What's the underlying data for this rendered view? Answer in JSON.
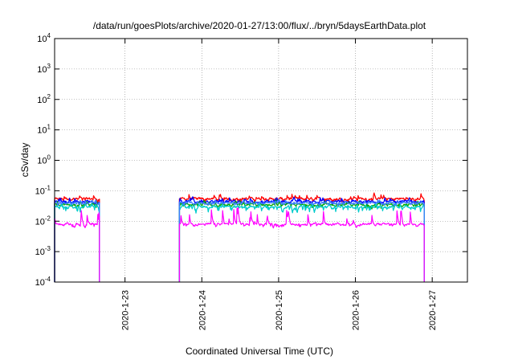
{
  "chart_data": {
    "type": "line",
    "title": "/data/run/goesPlots/archive/2020-01-27/13:00/flux/../bryn/5daysEarthData.plot",
    "xlabel": "Coordinated Universal Time (UTC)",
    "ylabel": "cSv/day",
    "yscale": "log",
    "ylim": [
      0.0001,
      10000
    ],
    "xlim": [
      "2020-01-22 02:00",
      "2020-01-27 11:00"
    ],
    "grid": true,
    "y_ticks": [
      {
        "base": "10",
        "exp": "-4",
        "value": 0.0001
      },
      {
        "base": "10",
        "exp": "-3",
        "value": 0.001
      },
      {
        "base": "10",
        "exp": "-2",
        "value": 0.01
      },
      {
        "base": "10",
        "exp": "-1",
        "value": 0.1
      },
      {
        "base": "10",
        "exp": "0",
        "value": 1
      },
      {
        "base": "10",
        "exp": "1",
        "value": 10
      },
      {
        "base": "10",
        "exp": "2",
        "value": 100
      },
      {
        "base": "10",
        "exp": "3",
        "value": 1000
      },
      {
        "base": "10",
        "exp": "4",
        "value": 10000
      }
    ],
    "x_ticks": [
      {
        "label": "2020-1-23",
        "value": "2020-01-23 00:00"
      },
      {
        "label": "2020-1-24",
        "value": "2020-01-24 00:00"
      },
      {
        "label": "2020-1-25",
        "value": "2020-01-25 00:00"
      },
      {
        "label": "2020-1-26",
        "value": "2020-01-26 00:00"
      },
      {
        "label": "2020-1-27",
        "value": "2020-01-27 00:00"
      }
    ],
    "data_segments": [
      {
        "start": "2020-01-22 02:00",
        "end": "2020-01-22 16:00"
      },
      {
        "start": "2020-01-23 17:00",
        "end": "2020-01-26 21:30"
      }
    ],
    "series": [
      {
        "color": "#ff0000",
        "baseline": 0.055,
        "spike_max": 0.1,
        "dip_min": 0.035
      },
      {
        "color": "#0000ff",
        "baseline": 0.045,
        "spike_max": 0.075,
        "dip_min": 0.03
      },
      {
        "color": "#00aa00",
        "baseline": 0.035,
        "spike_max": 0.06,
        "dip_min": 0.02
      },
      {
        "color": "#00cccc",
        "baseline": 0.03,
        "spike_max": 0.05,
        "dip_min": 0.012
      },
      {
        "color": "#3b7dff",
        "baseline": 0.04,
        "spike_max": 0.065,
        "dip_min": 0.028
      },
      {
        "color": "#ff00ff",
        "baseline": 0.008,
        "spike_max": 0.045,
        "dip_min": 0.005
      }
    ]
  }
}
